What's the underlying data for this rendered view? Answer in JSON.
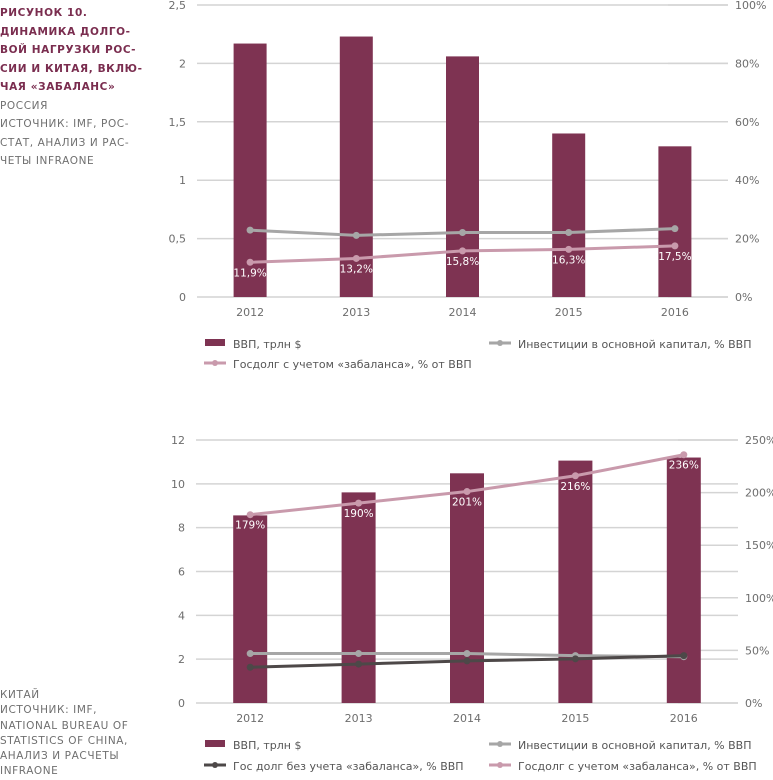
{
  "caption_top": {
    "title_lines": [
      "РИСУНОК 10.",
      "ДИНАМИКА ДОЛГО-",
      "ВОЙ НАГРУЗКИ РОС-",
      "СИИ И КИТАЯ, ВКЛЮ-",
      "ЧАЯ «ЗАБАЛАНС»"
    ],
    "body_lines": [
      "РОССИЯ",
      "ИСТОЧНИК: IMF, РОС-",
      "СТАТ, АНАЛИЗ И РАС-",
      "ЧЕТЫ INFRAONE"
    ]
  },
  "caption_bottom": {
    "body_lines": [
      "КИТАЙ",
      "ИСТОЧНИК: IMF,",
      "NATIONAL BUREAU OF",
      "STATISTICS OF CHINA,",
      "АНАЛИЗ И РАСЧЕТЫ",
      "INFRAONE"
    ]
  },
  "colors": {
    "bar": "#7e3352",
    "investment": "#a6a6a6",
    "debt_offbalance": "#c99aac",
    "debt_plain": "#4d4848",
    "grid": "#d4d4d4",
    "tick": "#6d6d6d"
  },
  "chart_data": [
    {
      "type": "bar",
      "title": "Россия",
      "categories": [
        "2012",
        "2013",
        "2014",
        "2015",
        "2016"
      ],
      "left_axis": {
        "ylim": [
          0,
          2.5
        ],
        "ticks": [
          0,
          0.5,
          1,
          1.5,
          2,
          2.5
        ],
        "tick_labels": [
          "0",
          "0,5",
          "1",
          "1,5",
          "2",
          "2,5"
        ]
      },
      "right_axis": {
        "ylim": [
          0,
          100
        ],
        "ticks": [
          0,
          20,
          40,
          60,
          80,
          100
        ],
        "tick_labels": [
          "0%",
          "20%",
          "40%",
          "60%",
          "80%",
          "100%"
        ]
      },
      "grid": true,
      "legend_position": "bottom",
      "series": [
        {
          "name": "ВВП, трлн $",
          "kind": "bar",
          "axis": "left",
          "color_key": "bar",
          "values": [
            2.17,
            2.23,
            2.06,
            1.4,
            1.29
          ]
        },
        {
          "name": "Инвестиции в основной капитал, % ВВП",
          "kind": "line",
          "axis": "right",
          "color_key": "investment",
          "values": [
            22.9,
            21.1,
            22.1,
            22.1,
            23.4
          ]
        },
        {
          "name": "Госдолг с учетом «забаланса», % от ВВП",
          "kind": "line",
          "axis": "right",
          "color_key": "debt_offbalance",
          "values": [
            11.9,
            13.2,
            15.8,
            16.3,
            17.5
          ],
          "data_labels": [
            "11,9%",
            "13,2%",
            "15,8%",
            "16,3%",
            "17,5%"
          ]
        }
      ],
      "legend": [
        {
          "label": "ВВП, трлн $",
          "kind": "bar",
          "color_key": "bar"
        },
        {
          "label": "Инвестиции в основной капитал, % ВВП",
          "kind": "line",
          "color_key": "investment"
        },
        {
          "label": "Госдолг с учетом «забаланса», % от ВВП",
          "kind": "line",
          "color_key": "debt_offbalance"
        }
      ]
    },
    {
      "type": "bar",
      "title": "Китай",
      "categories": [
        "2012",
        "2013",
        "2014",
        "2015",
        "2016"
      ],
      "left_axis": {
        "ylim": [
          0,
          12
        ],
        "ticks": [
          0,
          2,
          4,
          6,
          8,
          10,
          12
        ],
        "tick_labels": [
          "0",
          "2",
          "4",
          "6",
          "8",
          "10",
          "12"
        ]
      },
      "right_axis": {
        "ylim": [
          0,
          250
        ],
        "ticks": [
          0,
          50,
          100,
          150,
          200,
          250
        ],
        "tick_labels": [
          "0%",
          "50%",
          "100%",
          "150%",
          "200%",
          "250%"
        ]
      },
      "grid": true,
      "legend_position": "bottom",
      "series": [
        {
          "name": "ВВП, трлн $",
          "kind": "bar",
          "axis": "left",
          "color_key": "bar",
          "values": [
            8.56,
            9.61,
            10.48,
            11.06,
            11.2
          ]
        },
        {
          "name": "Инвестиции в основной капитал, % ВВП",
          "kind": "line",
          "axis": "right",
          "color_key": "investment",
          "values": [
            47,
            47,
            47,
            45,
            44
          ]
        },
        {
          "name": "Гос долг без учета «забаланса», % ВВП",
          "kind": "line",
          "axis": "right",
          "color_key": "debt_plain",
          "values": [
            34,
            37,
            40,
            42,
            45
          ]
        },
        {
          "name": "Госдолг с учетом «забаланса», % от ВВП",
          "kind": "line",
          "axis": "right",
          "color_key": "debt_offbalance",
          "values": [
            179,
            190,
            201,
            216,
            236
          ],
          "data_labels": [
            "179%",
            "190%",
            "201%",
            "216%",
            "236%"
          ]
        }
      ],
      "legend": [
        {
          "label": "ВВП, трлн $",
          "kind": "bar",
          "color_key": "bar"
        },
        {
          "label": "Инвестиции в основной капитал, % ВВП",
          "kind": "line",
          "color_key": "investment"
        },
        {
          "label": "Гос долг без учета «забаланса», % ВВП",
          "kind": "line",
          "color_key": "debt_plain"
        },
        {
          "label": "Госдолг с учетом «забаланса», % от ВВП",
          "kind": "line",
          "color_key": "debt_offbalance"
        }
      ]
    }
  ]
}
